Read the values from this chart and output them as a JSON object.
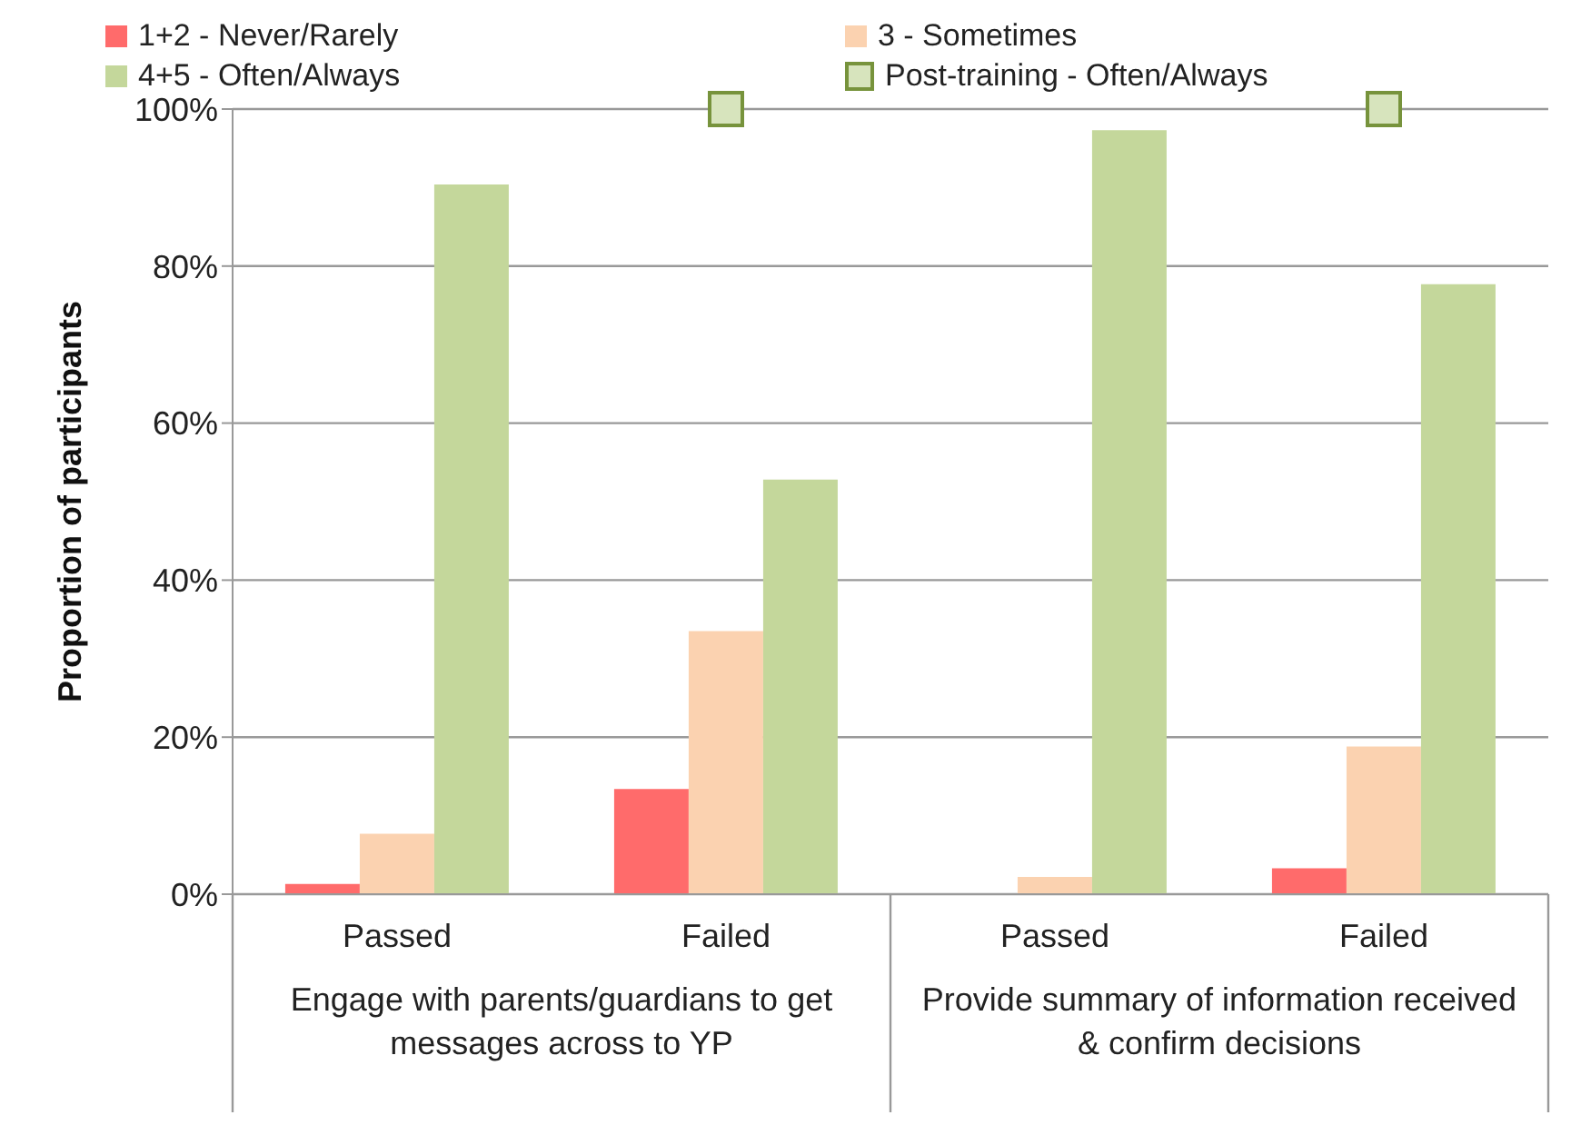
{
  "chart_data": {
    "type": "bar",
    "ylabel": "Proportion of participants",
    "categories": [
      "Passed",
      "Failed",
      "Passed",
      "Failed"
    ],
    "annotations": [
      "Engage with parents/guardians to get messages across to YP",
      "Provide summary of information received & confirm decisions"
    ],
    "series": [
      {
        "name": "1+2 - Never/Rarely",
        "color": "#ff6b6b",
        "values": [
          1.3,
          13.4,
          0,
          3.3
        ]
      },
      {
        "name": "3 - Sometimes",
        "color": "#fbd2b0",
        "values": [
          7.7,
          33.5,
          2.2,
          18.8
        ]
      },
      {
        "name": "4+5 - Often/Always",
        "color": "#c4d79b",
        "values": [
          90.4,
          52.8,
          97.3,
          77.7
        ]
      },
      {
        "name": "Post-training - Often/Always",
        "type": "scatter",
        "marker": "square",
        "color": "#d7e4bd",
        "values": [
          null,
          100,
          null,
          100
        ]
      }
    ],
    "ylim": [
      0,
      100
    ],
    "yticks": [
      {
        "value": 0,
        "label": "0%"
      },
      {
        "value": 20,
        "label": "20%"
      },
      {
        "value": 40,
        "label": "40%"
      },
      {
        "value": 60,
        "label": "60%"
      },
      {
        "value": 80,
        "label": "80%"
      },
      {
        "value": 100,
        "label": "100%"
      }
    ],
    "grid": "y",
    "legend": "top"
  }
}
